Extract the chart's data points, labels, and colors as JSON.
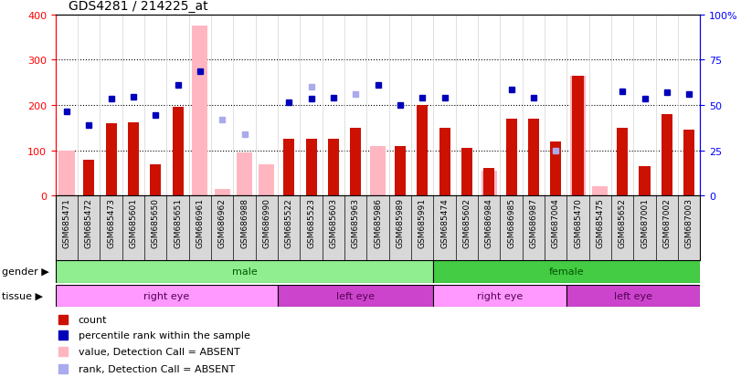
{
  "title": "GDS4281 / 214225_at",
  "samples": [
    "GSM685471",
    "GSM685472",
    "GSM685473",
    "GSM685601",
    "GSM685650",
    "GSM685651",
    "GSM686961",
    "GSM686962",
    "GSM686988",
    "GSM686990",
    "GSM685522",
    "GSM685523",
    "GSM685603",
    "GSM685963",
    "GSM685986",
    "GSM685989",
    "GSM685991",
    "GSM685474",
    "GSM685602",
    "GSM686984",
    "GSM686985",
    "GSM686987",
    "GSM687004",
    "GSM685470",
    "GSM685475",
    "GSM685652",
    "GSM687001",
    "GSM687002",
    "GSM687003"
  ],
  "count": [
    null,
    80,
    160,
    162,
    70,
    195,
    null,
    null,
    null,
    null,
    125,
    125,
    125,
    150,
    null,
    110,
    200,
    150,
    105,
    60,
    170,
    170,
    120,
    265,
    null,
    150,
    65,
    180,
    145
  ],
  "percentile_rank": [
    185,
    155,
    213,
    218,
    178,
    245,
    275,
    null,
    null,
    null,
    205,
    213,
    215,
    null,
    245,
    200,
    215,
    215,
    null,
    null,
    235,
    215,
    null,
    null,
    null,
    230,
    213,
    228,
    225
  ],
  "absent_value": [
    100,
    null,
    null,
    null,
    null,
    null,
    375,
    15,
    95,
    70,
    null,
    null,
    null,
    null,
    110,
    null,
    null,
    null,
    null,
    55,
    null,
    null,
    null,
    265,
    20,
    null,
    null,
    null,
    null
  ],
  "absent_rank": [
    null,
    null,
    null,
    null,
    null,
    null,
    null,
    168,
    135,
    null,
    null,
    240,
    null,
    225,
    null,
    null,
    null,
    null,
    null,
    null,
    null,
    null,
    100,
    null,
    null,
    null,
    null,
    null,
    null
  ],
  "gender_groups": [
    {
      "label": "male",
      "start": 0,
      "end": 16,
      "color": "#90EE90"
    },
    {
      "label": "female",
      "start": 17,
      "end": 28,
      "color": "#44CC44"
    }
  ],
  "tissue_groups": [
    {
      "label": "right eye",
      "start": 0,
      "end": 9,
      "color": "#FF99FF"
    },
    {
      "label": "left eye",
      "start": 10,
      "end": 16,
      "color": "#CC44CC"
    },
    {
      "label": "right eye",
      "start": 17,
      "end": 22,
      "color": "#FF99FF"
    },
    {
      "label": "left eye",
      "start": 23,
      "end": 28,
      "color": "#CC44CC"
    }
  ],
  "ylim_left": [
    0,
    400
  ],
  "ylim_right": [
    0,
    100
  ],
  "yticks_left": [
    0,
    100,
    200,
    300,
    400
  ],
  "yticks_right": [
    0,
    25,
    50,
    75,
    100
  ],
  "ytick_labels_right": [
    "0",
    "25",
    "50",
    "75",
    "100%"
  ],
  "bar_color_count": "#CC1100",
  "bar_color_absent_value": "#FFB6C1",
  "dot_color_rank": "#0000BB",
  "dot_color_absent_rank": "#AAAAEE",
  "grid_color": "black"
}
